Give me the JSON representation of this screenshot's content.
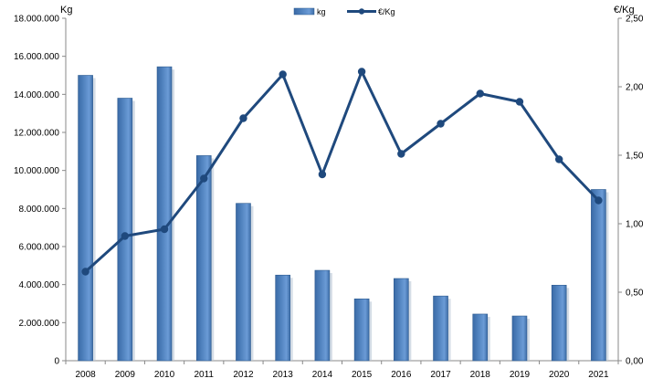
{
  "chart_data": {
    "type": "bar",
    "categories": [
      "2008",
      "2009",
      "2010",
      "2011",
      "2012",
      "2013",
      "2014",
      "2015",
      "2016",
      "2017",
      "2018",
      "2019",
      "2020",
      "2021"
    ],
    "series": [
      {
        "name": "kg",
        "type": "bar",
        "axis": "left",
        "values": [
          15000000,
          13800000,
          15450000,
          10780000,
          8270000,
          4500000,
          4750000,
          3250000,
          4320000,
          3400000,
          2450000,
          2350000,
          3970000,
          9000000
        ]
      },
      {
        "name": "€/Kg",
        "type": "line",
        "axis": "right",
        "values": [
          0.65,
          0.91,
          0.96,
          1.33,
          1.77,
          2.09,
          1.36,
          2.11,
          1.51,
          1.73,
          1.95,
          1.89,
          1.47,
          1.17
        ]
      }
    ],
    "yleft": {
      "label": "Kg",
      "ylim": [
        0,
        18000000
      ],
      "ticks": [
        "0",
        "2.000.000",
        "4.000.000",
        "6.000.000",
        "8.000.000",
        "10.000.000",
        "12.000.000",
        "14.000.000",
        "16.000.000",
        "18.000.000"
      ]
    },
    "yright": {
      "label": "€/Kg",
      "ylim": [
        0,
        2.5
      ],
      "ticks": [
        "0,00",
        "0,50",
        "1,00",
        "1,50",
        "2,00",
        "2,50"
      ]
    },
    "legend_position": "top-center",
    "grid": false,
    "colors": {
      "bar": "#4f81bd",
      "bar_dark": "#2c5a8f",
      "line": "#1f497d"
    }
  }
}
